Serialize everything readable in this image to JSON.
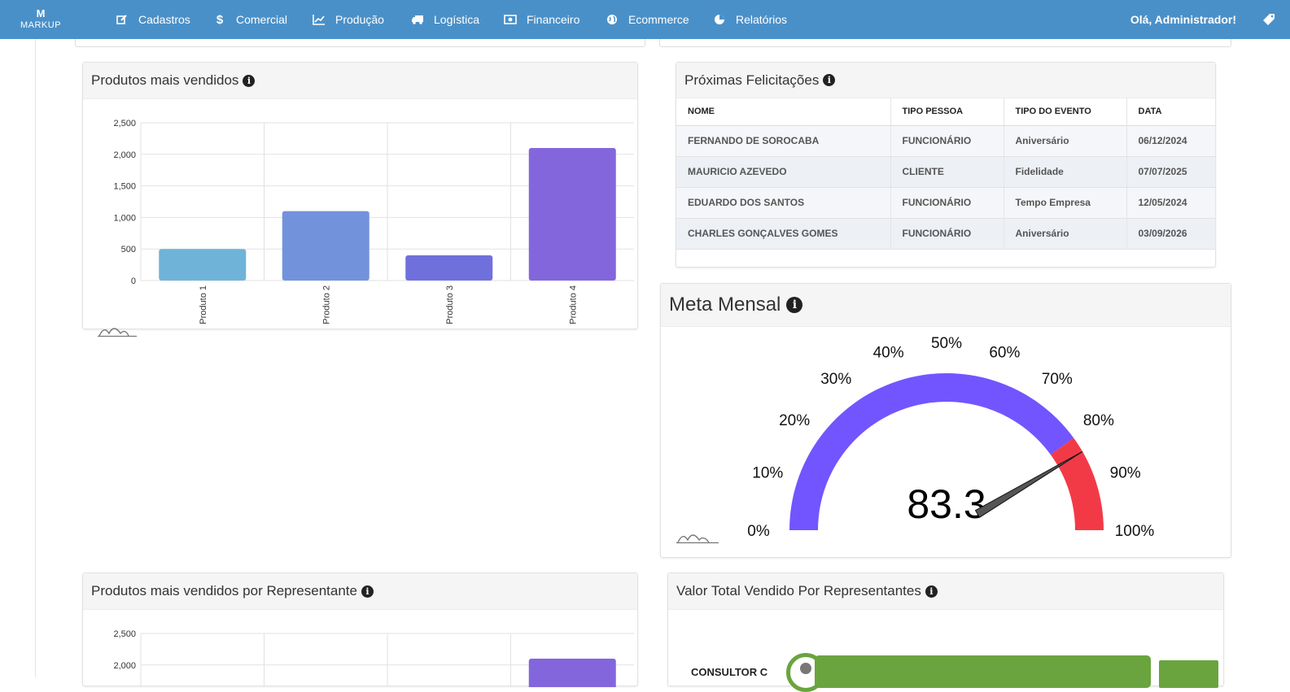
{
  "app": {
    "logo_mark": "M",
    "logo_text": "MARKUP"
  },
  "nav": [
    {
      "label": "Cadastros",
      "icon": "edit-icon"
    },
    {
      "label": "Comercial",
      "icon": "dollar-icon"
    },
    {
      "label": "Produção",
      "icon": "line-chart-icon"
    },
    {
      "label": "Logística",
      "icon": "truck-icon"
    },
    {
      "label": "Financeiro",
      "icon": "money-icon"
    },
    {
      "label": "Ecommerce",
      "icon": "globe-icon"
    },
    {
      "label": "Relatórios",
      "icon": "pie-chart-icon"
    }
  ],
  "user": {
    "greeting": "Olá, Administrador!",
    "menu_icon": "tag-icon"
  },
  "panels": {
    "top_products": {
      "title": "Produtos mais vendidos"
    },
    "felicitacoes": {
      "title": "Próximas Felicitações"
    },
    "meta": {
      "title": "Meta Mensal"
    },
    "by_rep": {
      "title": "Produtos mais vendidos por Representante"
    },
    "total_rep": {
      "title": "Valor Total Vendido Por Representantes",
      "partial_label": "CONSULTOR C"
    }
  },
  "felicitacoes_table": {
    "headers": [
      "NOME",
      "TIPO PESSOA",
      "TIPO DO EVENTO",
      "DATA"
    ],
    "rows": [
      [
        "FERNANDO DE SOROCABA",
        "FUNCIONÁRIO",
        "Aniversário",
        "06/12/2024"
      ],
      [
        "MAURICIO AZEVEDO",
        "CLIENTE",
        "Fidelidade",
        "07/07/2025"
      ],
      [
        "EDUARDO DOS SANTOS",
        "FUNCIONÁRIO",
        "Tempo Empresa",
        "12/05/2024"
      ],
      [
        "CHARLES GONÇALVES GOMES",
        "FUNCIONÁRIO",
        "Aniversário",
        "03/09/2026"
      ]
    ]
  },
  "colors": {
    "nav": "#4a90c8",
    "gauge_main": "#7255ff",
    "gauge_danger": "#f23a47",
    "green": "#6aa43e"
  },
  "chart_data": [
    {
      "type": "bar",
      "categories": [
        "Produto 1",
        "Produto 2",
        "Produto 3",
        "Produto 4"
      ],
      "values": [
        500,
        1100,
        400,
        2100
      ],
      "colors": [
        "#6fb3d9",
        "#7293dc",
        "#7070dc",
        "#8466dc"
      ],
      "ylim": [
        0,
        2500
      ],
      "yticks": [
        "0",
        "500",
        "1,000",
        "1,500",
        "2,000",
        "2,500"
      ],
      "grid": true
    },
    {
      "type": "gauge",
      "value": 83.3,
      "value_label": "83.3",
      "range": [
        0,
        100
      ],
      "danger_from": 80,
      "tick_labels": [
        "0%",
        "10%",
        "20%",
        "30%",
        "40%",
        "50%",
        "60%",
        "70%",
        "80%",
        "90%",
        "100%"
      ]
    },
    {
      "type": "bar",
      "ylim": [
        0,
        2500
      ],
      "yticks": [
        "2,000",
        "2,500"
      ],
      "values": [
        2100
      ],
      "grid": true
    }
  ]
}
